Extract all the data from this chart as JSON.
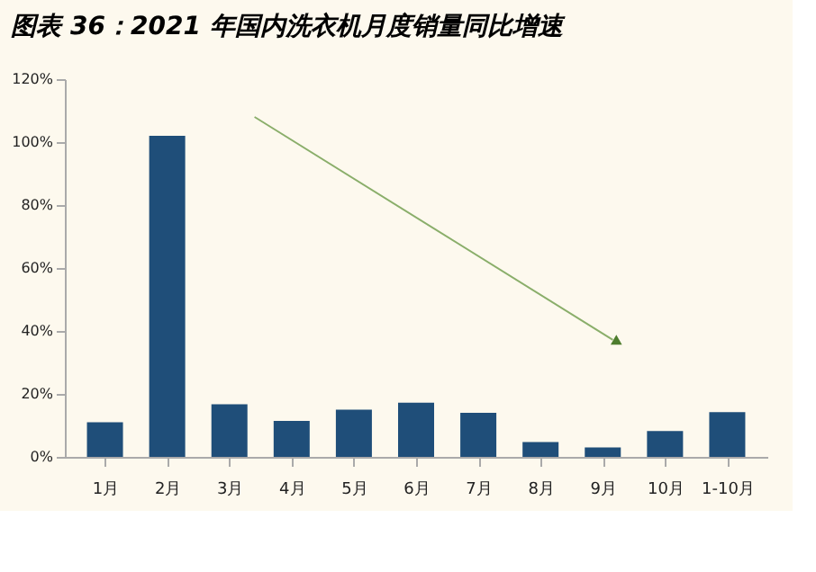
{
  "chart_data": {
    "type": "bar",
    "title": "图表 36：2021 年国内洗衣机月度销量同比增速",
    "categories": [
      "1月",
      "2月",
      "3月",
      "4月",
      "5月",
      "6月",
      "7月",
      "8月",
      "9月",
      "10月",
      "1-10月"
    ],
    "values": [
      11.0,
      102,
      16.7,
      11.4,
      15.0,
      17.2,
      14.0,
      4.7,
      3.0,
      8.2,
      14.2
    ],
    "color": "#1f4e79",
    "ylim": [
      0,
      120
    ],
    "yticks": [
      {
        "value": 0,
        "label": "0%"
      },
      {
        "value": 20,
        "label": "20%"
      },
      {
        "value": 40,
        "label": "40%"
      },
      {
        "value": 60,
        "label": "60%"
      },
      {
        "value": 80,
        "label": "80%"
      },
      {
        "value": 100,
        "label": "100%"
      },
      {
        "value": 120,
        "label": "120%"
      }
    ],
    "grid": false
  }
}
